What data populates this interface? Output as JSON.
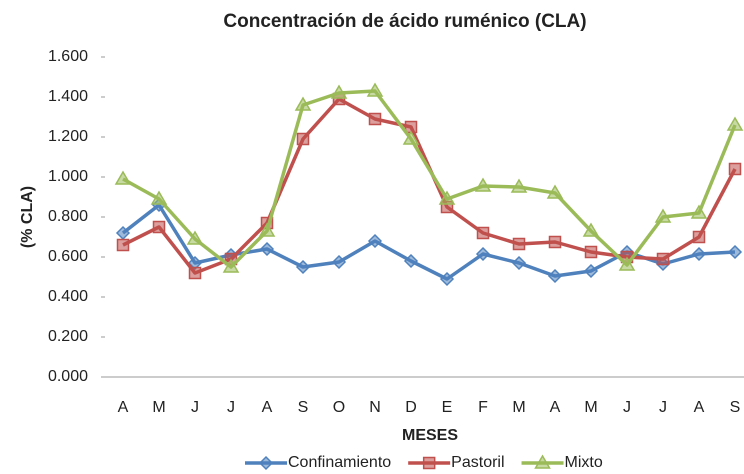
{
  "chart_data": {
    "type": "line",
    "title": "Concentración de ácido ruménico (CLA)",
    "x_label": "MESES",
    "y_label": "(% CLA)",
    "categories": [
      "A",
      "M",
      "J",
      "J",
      "A",
      "S",
      "O",
      "N",
      "D",
      "E",
      "F",
      "M",
      "A",
      "M",
      "J",
      "J",
      "A",
      "S"
    ],
    "series": [
      {
        "name": "Confinamiento",
        "color": "#4f81bd",
        "marker": "diamond",
        "values": [
          0.72,
          0.86,
          0.57,
          0.61,
          0.64,
          0.55,
          0.575,
          0.68,
          0.58,
          0.49,
          0.615,
          0.57,
          0.505,
          0.53,
          0.625,
          0.565,
          0.615,
          0.625
        ]
      },
      {
        "name": "Pastoril",
        "color": "#c0504d",
        "marker": "square",
        "values": [
          0.66,
          0.75,
          0.52,
          0.59,
          0.77,
          1.19,
          1.39,
          1.29,
          1.25,
          0.85,
          0.72,
          0.665,
          0.675,
          0.625,
          0.6,
          0.59,
          0.7,
          1.04
        ]
      },
      {
        "name": "Mixto",
        "color": "#9bbb59",
        "marker": "triangle",
        "values": [
          0.99,
          0.89,
          0.69,
          0.55,
          0.73,
          1.36,
          1.42,
          1.43,
          1.19,
          0.89,
          0.955,
          0.95,
          0.92,
          0.73,
          0.56,
          0.8,
          0.82,
          1.26
        ]
      }
    ],
    "ylim": [
      0,
      1.6
    ],
    "yticks": [
      {
        "value": 0,
        "label": "0.000"
      },
      {
        "value": 0.2,
        "label": "0.200"
      },
      {
        "value": 0.4,
        "label": "0.400"
      },
      {
        "value": 0.6,
        "label": "0.600"
      },
      {
        "value": 0.8,
        "label": "0.800"
      },
      {
        "value": 1,
        "label": "1.000"
      },
      {
        "value": 1.2,
        "label": "1.200"
      },
      {
        "value": 1.4,
        "label": "1.400"
      },
      {
        "value": 1.6,
        "label": "1.600"
      }
    ],
    "grid": false,
    "legend": "bottom"
  }
}
